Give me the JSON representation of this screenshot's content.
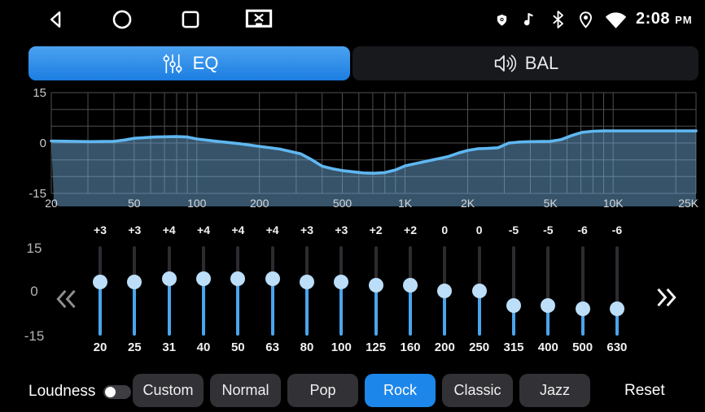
{
  "status_bar": {
    "time": "2:08",
    "time_period": "PM",
    "nav_icons": [
      "back-icon",
      "home-icon",
      "recents-icon",
      "screenshot-icon"
    ],
    "indicator_icons": [
      "shield-icon",
      "music-note-icon",
      "bluetooth-icon",
      "location-icon",
      "wifi-icon"
    ]
  },
  "tabs": [
    {
      "id": "eq",
      "label": "EQ",
      "icon": "eq-sliders-icon",
      "active": true
    },
    {
      "id": "bal",
      "label": "BAL",
      "icon": "speaker-icon",
      "active": false
    }
  ],
  "chart_data": {
    "type": "area",
    "title": "EQ frequency response curve",
    "x_scale": "log",
    "xlim": [
      20,
      25000
    ],
    "ylim": [
      -15,
      15
    ],
    "grid": true,
    "yticks": [
      {
        "value": 15,
        "label": "15"
      },
      {
        "value": 0,
        "label": "0"
      },
      {
        "value": -15,
        "label": "-15"
      }
    ],
    "grid_y_values": [
      15,
      10,
      5,
      0,
      -5,
      -10,
      -15
    ],
    "grid_x_values": [
      20,
      30,
      40,
      50,
      60,
      70,
      80,
      90,
      100,
      200,
      300,
      400,
      500,
      600,
      700,
      800,
      900,
      1000,
      2000,
      3000,
      4000,
      5000,
      6000,
      7000,
      8000,
      9000,
      10000,
      20000,
      25000
    ],
    "xticks": [
      {
        "value": 20,
        "label": "20"
      },
      {
        "value": 50,
        "label": "50"
      },
      {
        "value": 100,
        "label": "100"
      },
      {
        "value": 200,
        "label": "200"
      },
      {
        "value": 500,
        "label": "500"
      },
      {
        "value": 1000,
        "label": "1K"
      },
      {
        "value": 2000,
        "label": "2K"
      },
      {
        "value": 5000,
        "label": "5K"
      },
      {
        "value": 10000,
        "label": "10K"
      },
      {
        "value": 25000,
        "label": "25K"
      }
    ],
    "series": [
      {
        "name": "response_db",
        "points": [
          [
            20,
            0.6
          ],
          [
            25,
            0.5
          ],
          [
            31,
            0.4
          ],
          [
            40,
            0.5
          ],
          [
            45,
            0.9
          ],
          [
            50,
            1.4
          ],
          [
            63,
            1.8
          ],
          [
            80,
            1.9
          ],
          [
            90,
            1.8
          ],
          [
            100,
            1.2
          ],
          [
            125,
            0.5
          ],
          [
            160,
            -0.2
          ],
          [
            200,
            -1.0
          ],
          [
            250,
            -1.8
          ],
          [
            315,
            -3.2
          ],
          [
            355,
            -4.9
          ],
          [
            400,
            -6.9
          ],
          [
            450,
            -7.7
          ],
          [
            500,
            -8.2
          ],
          [
            630,
            -8.9
          ],
          [
            710,
            -9.0
          ],
          [
            800,
            -8.8
          ],
          [
            900,
            -8.0
          ],
          [
            1000,
            -6.8
          ],
          [
            1250,
            -5.5
          ],
          [
            1600,
            -4.1
          ],
          [
            1800,
            -3.0
          ],
          [
            2000,
            -2.2
          ],
          [
            2240,
            -1.7
          ],
          [
            2500,
            -1.6
          ],
          [
            2800,
            -1.4
          ],
          [
            3150,
            0.0
          ],
          [
            3550,
            0.3
          ],
          [
            4000,
            0.4
          ],
          [
            5000,
            0.5
          ],
          [
            5600,
            1.0
          ],
          [
            6300,
            2.2
          ],
          [
            7100,
            3.2
          ],
          [
            8000,
            3.5
          ],
          [
            9000,
            3.6
          ],
          [
            10000,
            3.6
          ],
          [
            25000,
            3.6
          ]
        ]
      }
    ],
    "colors": {
      "line": "#5fb7f0",
      "fill": "rgba(120,185,235,0.45)",
      "grid": "#4f4f4f",
      "tick_text": "#d5d5d5"
    }
  },
  "equalizer": {
    "y_axis_labels": [
      "15",
      "0",
      "-15"
    ],
    "slider_range": [
      -15,
      15
    ],
    "pager_prev_icon": "chevrons-left-icon",
    "pager_next_icon": "chevrons-right-icon",
    "bands": [
      {
        "freq": "20",
        "gain": 3,
        "gain_label": "+3"
      },
      {
        "freq": "25",
        "gain": 3,
        "gain_label": "+3"
      },
      {
        "freq": "31",
        "gain": 4,
        "gain_label": "+4"
      },
      {
        "freq": "40",
        "gain": 4,
        "gain_label": "+4"
      },
      {
        "freq": "50",
        "gain": 4,
        "gain_label": "+4"
      },
      {
        "freq": "63",
        "gain": 4,
        "gain_label": "+4"
      },
      {
        "freq": "80",
        "gain": 3,
        "gain_label": "+3"
      },
      {
        "freq": "100",
        "gain": 3,
        "gain_label": "+3"
      },
      {
        "freq": "125",
        "gain": 2,
        "gain_label": "+2"
      },
      {
        "freq": "160",
        "gain": 2,
        "gain_label": "+2"
      },
      {
        "freq": "200",
        "gain": 0,
        "gain_label": "0"
      },
      {
        "freq": "250",
        "gain": 0,
        "gain_label": "0"
      },
      {
        "freq": "315",
        "gain": -5,
        "gain_label": "-5"
      },
      {
        "freq": "400",
        "gain": -5,
        "gain_label": "-5"
      },
      {
        "freq": "500",
        "gain": -6,
        "gain_label": "-6"
      },
      {
        "freq": "630",
        "gain": -6,
        "gain_label": "-6"
      }
    ]
  },
  "footer": {
    "loudness_label": "Loudness",
    "loudness_enabled": false,
    "presets": [
      {
        "label": "Custom",
        "active": false
      },
      {
        "label": "Normal",
        "active": false
      },
      {
        "label": "Pop",
        "active": false
      },
      {
        "label": "Rock",
        "active": true
      },
      {
        "label": "Classic",
        "active": false
      },
      {
        "label": "Jazz",
        "active": false
      }
    ],
    "reset_label": "Reset"
  },
  "colors": {
    "accent_blue": "#1d86ea",
    "tab_gradient_top": "#4ba2f0",
    "tab_gradient_bottom": "#1c7ee2",
    "slider_fill": "#4aa5ec",
    "slider_knob": "#bcdef9",
    "button_bg": "#323236",
    "background": "#000000"
  }
}
